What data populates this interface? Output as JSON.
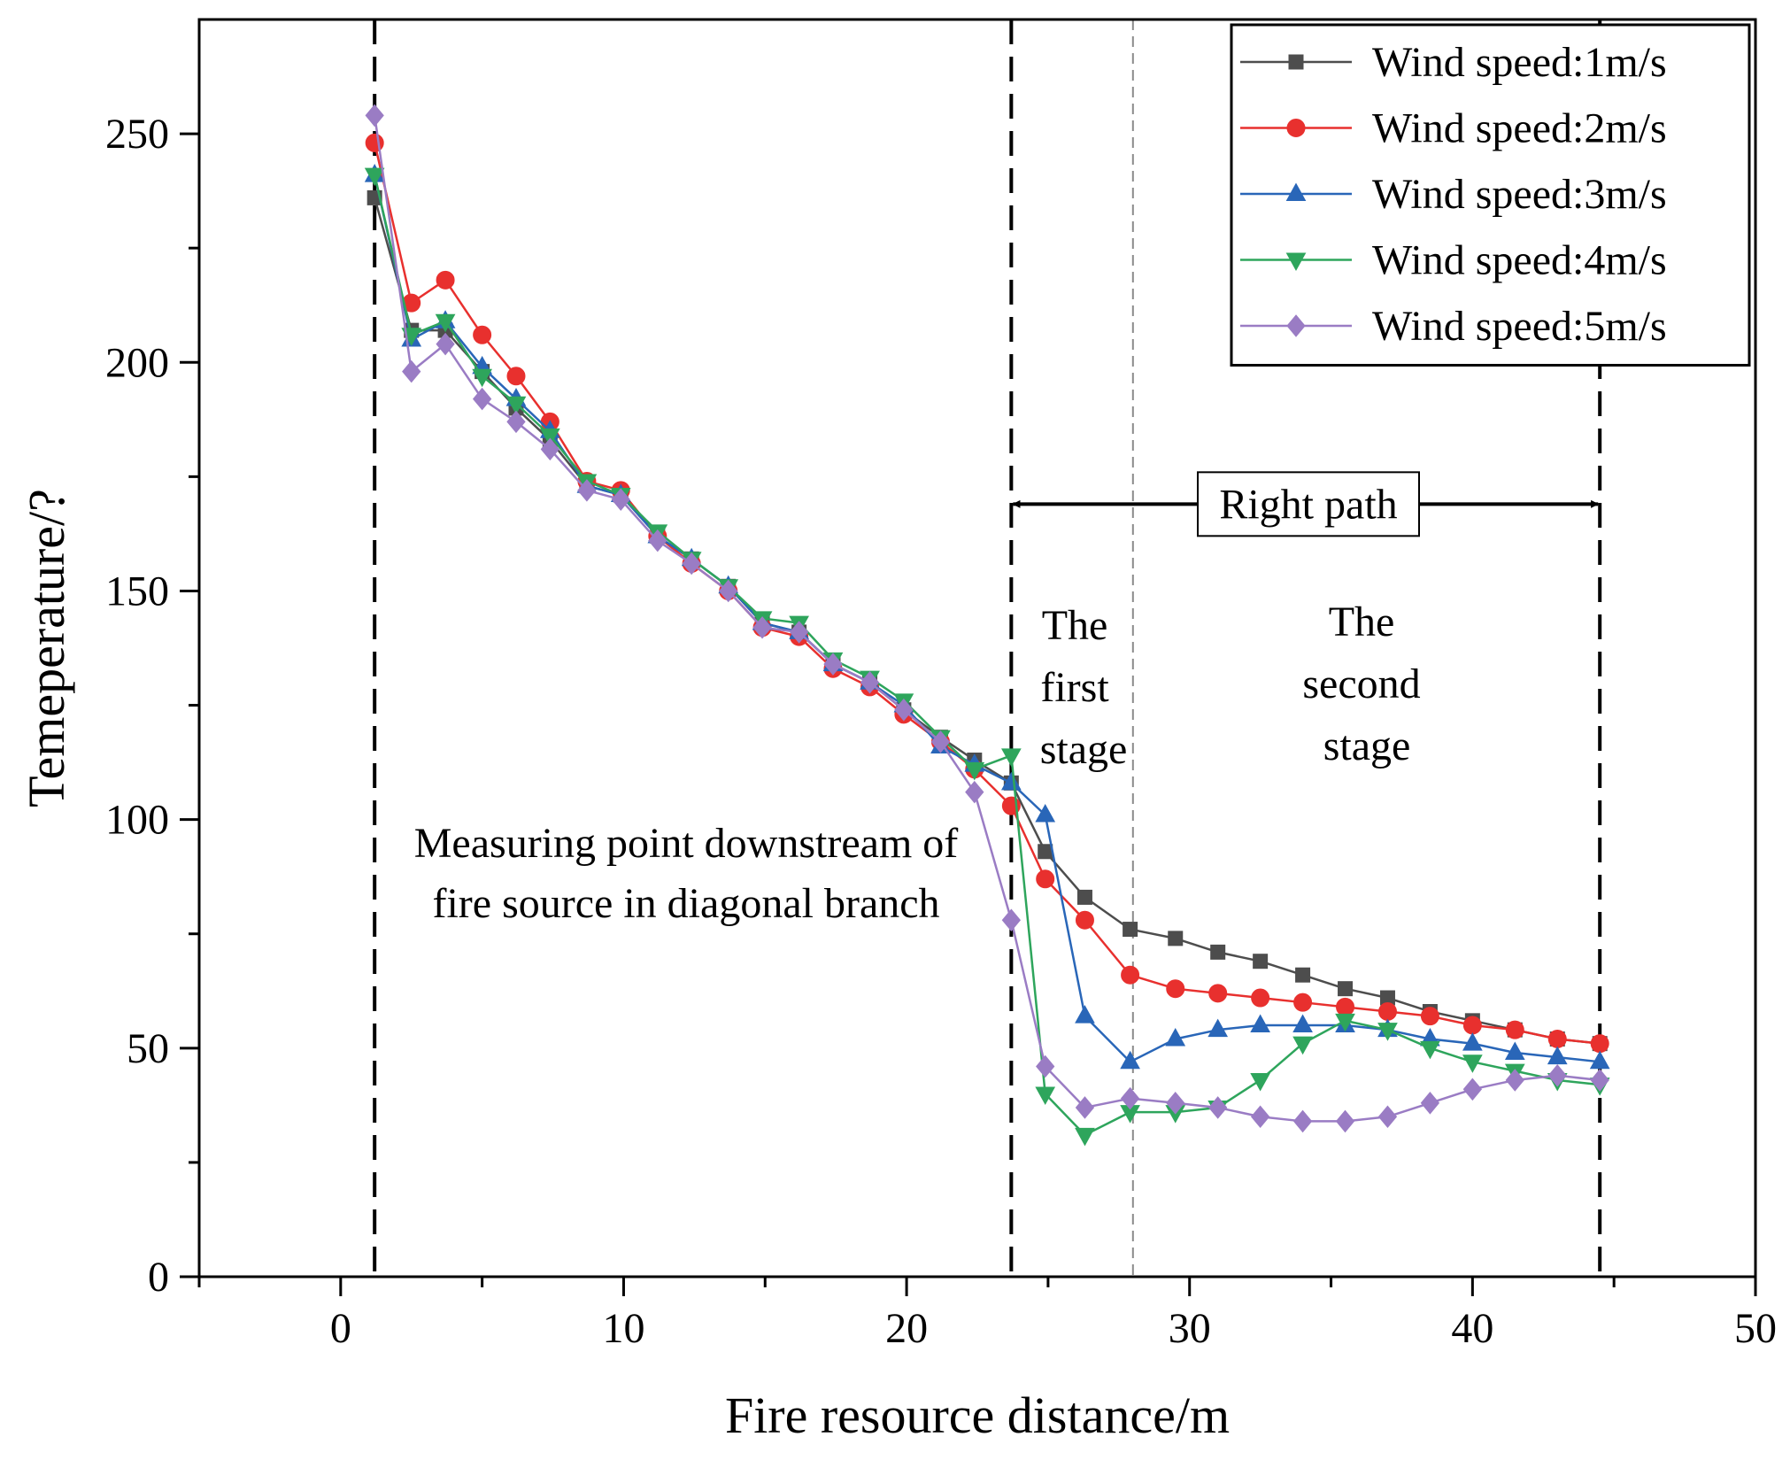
{
  "chart_data": {
    "type": "line",
    "xlabel": "Fire resource distance/m",
    "ylabel": "Temeperature/?",
    "xlim": [
      -5,
      50
    ],
    "ylim": [
      0,
      275
    ],
    "x_ticks": [
      0,
      10,
      20,
      30,
      40,
      50
    ],
    "y_ticks": [
      0,
      50,
      100,
      150,
      200,
      250
    ],
    "x_minor_ticks": [
      -5,
      5,
      15,
      25,
      35,
      45
    ],
    "y_minor_ticks": [
      25,
      75,
      125,
      175,
      225
    ],
    "grid": false,
    "legend_position": "top-right",
    "x": [
      1.2,
      2.5,
      3.7,
      5.0,
      6.2,
      7.4,
      8.7,
      9.9,
      11.2,
      12.4,
      13.7,
      14.9,
      16.2,
      17.4,
      18.7,
      19.9,
      21.2,
      22.4,
      23.7,
      24.9,
      26.3,
      27.9,
      29.5,
      31.0,
      32.5,
      34.0,
      35.5,
      37.0,
      38.5,
      40.0,
      41.5,
      43.0,
      44.5
    ],
    "series": [
      {
        "name": "Wind speed:1m/s",
        "color": "#4d4d4d",
        "marker": "square",
        "values": [
          236,
          207,
          207,
          198,
          190,
          183,
          173,
          171,
          162,
          157,
          151,
          143,
          141,
          134,
          130,
          124,
          118,
          113,
          108,
          93,
          83,
          76,
          74,
          71,
          69,
          66,
          63,
          61,
          58,
          56,
          54,
          52,
          51
        ]
      },
      {
        "name": "Wind speed:2m/s",
        "color": "#e8302e",
        "marker": "circle",
        "values": [
          248,
          213,
          218,
          206,
          197,
          187,
          174,
          172,
          162,
          156,
          150,
          142,
          140,
          133,
          129,
          123,
          117,
          111,
          103,
          87,
          78,
          66,
          63,
          62,
          61,
          60,
          59,
          58,
          57,
          55,
          54,
          52,
          51
        ]
      },
      {
        "name": "Wind speed:3m/s",
        "color": "#2966b8",
        "marker": "triangle-up",
        "values": [
          241,
          205,
          209,
          199,
          192,
          185,
          173,
          171,
          162,
          157,
          151,
          143,
          141,
          134,
          130,
          125,
          116,
          112,
          108,
          101,
          57,
          47,
          52,
          54,
          55,
          55,
          55,
          54,
          52,
          51,
          49,
          48,
          47
        ]
      },
      {
        "name": "Wind speed:4m/s",
        "color": "#2ea55c",
        "marker": "triangle-down",
        "values": [
          241,
          206,
          209,
          197,
          191,
          184,
          174,
          171,
          163,
          157,
          151,
          144,
          143,
          135,
          131,
          126,
          118,
          111,
          114,
          40,
          31,
          36,
          36,
          37,
          43,
          51,
          56,
          54,
          50,
          47,
          45,
          43,
          42
        ]
      },
      {
        "name": "Wind speed:5m/s",
        "color": "#9a7cc4",
        "marker": "diamond",
        "values": [
          254,
          198,
          204,
          192,
          187,
          181,
          172,
          170,
          161,
          156,
          150,
          142,
          141,
          134,
          130,
          124,
          117,
          106,
          78,
          46,
          37,
          39,
          38,
          37,
          35,
          34,
          34,
          35,
          38,
          41,
          43,
          44,
          43
        ]
      }
    ],
    "vertical_lines": [
      {
        "x": 1.2,
        "style": "dashed-black"
      },
      {
        "x": 23.7,
        "style": "dashed-black"
      },
      {
        "x": 28.0,
        "style": "dashed-gray"
      },
      {
        "x": 44.5,
        "style": "dashed-black"
      }
    ],
    "path_arrow": {
      "from": 23.7,
      "to": 44.5,
      "y": 169,
      "label": "Right path"
    },
    "annotations": {
      "region1_line1": "Measuring point downstream of",
      "region1_line2": "fire source in diagonal branch",
      "stage1_line1": "The",
      "stage1_line2": "first",
      "stage1_line3": "stage",
      "stage2_line1": "The",
      "stage2_line2": "second",
      "stage2_line3": "stage"
    }
  }
}
